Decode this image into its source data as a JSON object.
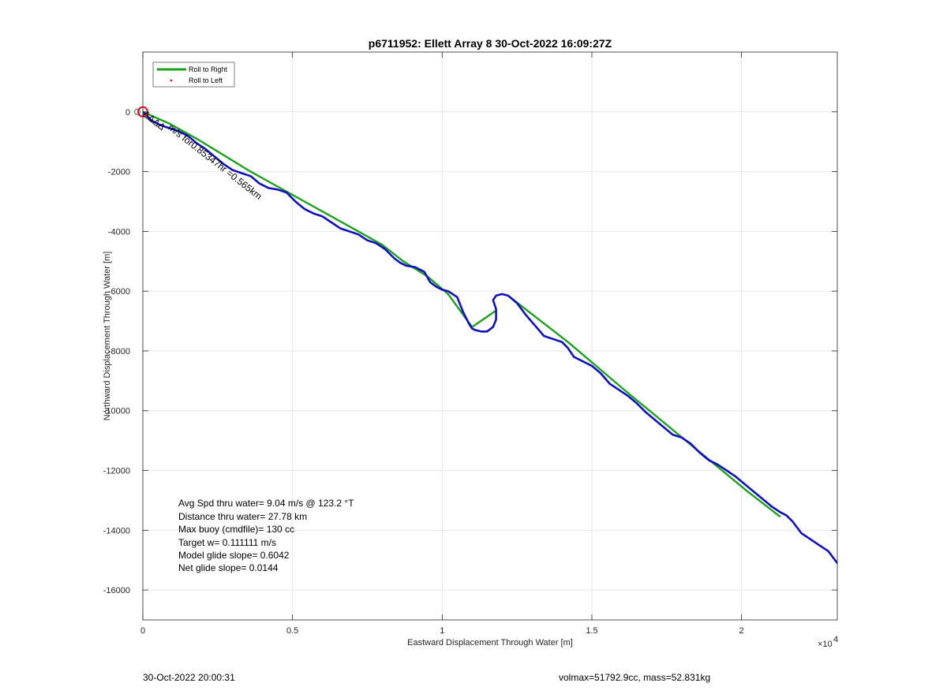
{
  "chart_data": {
    "type": "line",
    "title": "p6711952: Ellett Array 8 30-Oct-2022 16:09:27Z",
    "xlabel": "Eastward Displacement Through Water [m]",
    "ylabel": "Northward Displacement Through Water [m]",
    "x_exponent_label": "×10",
    "x_exponent_power": "4",
    "xlim": [
      0,
      23200
    ],
    "ylim": [
      -17000,
      2000
    ],
    "x_ticks": [
      0,
      5000,
      10000,
      15000,
      20000
    ],
    "x_tick_labels": [
      "0",
      "0.5",
      "1",
      "1.5",
      "2"
    ],
    "y_ticks": [
      0,
      -2000,
      -4000,
      -6000,
      -8000,
      -10000,
      -12000,
      -14000,
      -16000
    ],
    "y_tick_labels": [
      "0",
      "-2000",
      "-4000",
      "-6000",
      "-8000",
      "-10000",
      "-12000",
      "-14000",
      "-16000"
    ],
    "grid": true,
    "legend": {
      "placement": "top-left",
      "entries": [
        {
          "name": "Roll to Right",
          "color": "#1aa31a",
          "style": "line"
        },
        {
          "name": "Roll to Left",
          "color": "#e01010",
          "style": "dot"
        }
      ]
    },
    "series": [
      {
        "name": "Roll to Right",
        "color": "#1aa31a",
        "segments": [
          {
            "x": [
              0,
              900,
              1800,
              2700,
              3600,
              4500,
              5400,
              6300,
              7200,
              8000,
              8700,
              9500,
              10200,
              11000
            ],
            "y": [
              0,
              -400,
              -900,
              -1450,
              -2000,
              -2500,
              -3000,
              -3500,
              -4000,
              -4450,
              -5000,
              -5500,
              -6100,
              -7200
            ]
          },
          {
            "x": [
              11000,
              11800
            ],
            "y": [
              -7200,
              -6650
            ]
          },
          {
            "x": [
              12200,
              14200,
              16200,
              18200,
              20200,
              21300
            ],
            "y": [
              -6150,
              -7700,
              -9400,
              -11050,
              -12700,
              -13550
            ]
          }
        ]
      },
      {
        "name": "glider track",
        "color": "#1010c0",
        "x": [
          0,
          300,
          600,
          900,
          1200,
          1500,
          1800,
          2100,
          2400,
          2700,
          3000,
          3300,
          3600,
          3900,
          4200,
          4500,
          4800,
          5100,
          5400,
          5700,
          6000,
          6300,
          6600,
          6900,
          7200,
          7500,
          7800,
          8100,
          8400,
          8600,
          8800,
          9100,
          9400,
          9600,
          9800,
          10000,
          10200,
          10500,
          10700,
          10900,
          11000,
          11100,
          11300,
          11500,
          11700,
          11800,
          11800,
          11700,
          11800,
          12000,
          12200,
          12500,
          12800,
          13100,
          13400,
          13700,
          14000,
          14200,
          14400,
          14700,
          15000,
          15300,
          15600,
          15900,
          16200,
          16500,
          16800,
          17100,
          17400,
          17700,
          18000,
          18300,
          18600,
          18900,
          19200,
          19500,
          19800,
          20100,
          20400,
          20700,
          21000,
          21300,
          21500,
          21700,
          22000,
          22300,
          22600,
          22900,
          23200
        ],
        "y": [
          0,
          -300,
          -450,
          -550,
          -650,
          -800,
          -1050,
          -1250,
          -1500,
          -1750,
          -1950,
          -2050,
          -2150,
          -2400,
          -2550,
          -2600,
          -2700,
          -3000,
          -3250,
          -3400,
          -3500,
          -3700,
          -3900,
          -4000,
          -4100,
          -4300,
          -4400,
          -4600,
          -4900,
          -5050,
          -5150,
          -5200,
          -5350,
          -5700,
          -5850,
          -5950,
          -6000,
          -6200,
          -6700,
          -7100,
          -7250,
          -7300,
          -7350,
          -7350,
          -7200,
          -6950,
          -6600,
          -6300,
          -6150,
          -6100,
          -6150,
          -6400,
          -6800,
          -7150,
          -7500,
          -7600,
          -7700,
          -7900,
          -8200,
          -8350,
          -8500,
          -8750,
          -9100,
          -9300,
          -9500,
          -9750,
          -10050,
          -10300,
          -10550,
          -10800,
          -10900,
          -11100,
          -11400,
          -11650,
          -11800,
          -12000,
          -12200,
          -12450,
          -12700,
          -12950,
          -13200,
          -13400,
          -13500,
          -13700,
          -14100,
          -14300,
          -14500,
          -14700,
          -15100
        ]
      }
    ],
    "markers": [
      {
        "name": "start",
        "x": 0,
        "y": 0,
        "color": "#e01010"
      }
    ],
    "annotations": {
      "track_label": "m/s for0.85347hr =0.565km",
      "overlap_label": "ΔΔΔΔ",
      "stats": [
        "Avg Spd thru water=  9.04 m/s @ 123.2 °T",
        "Distance thru water= 27.78 km",
        "Max buoy (cmdfile)= 130 cc",
        "Target w= 0.111111 m/s",
        "Model glide slope= 0.6042",
        "Net glide slope= 0.0144"
      ]
    }
  },
  "footer": {
    "timestamp": "30-Oct-2022 20:00:31",
    "mass_info": "volmax=51792.9cc, mass=52.831kg"
  }
}
